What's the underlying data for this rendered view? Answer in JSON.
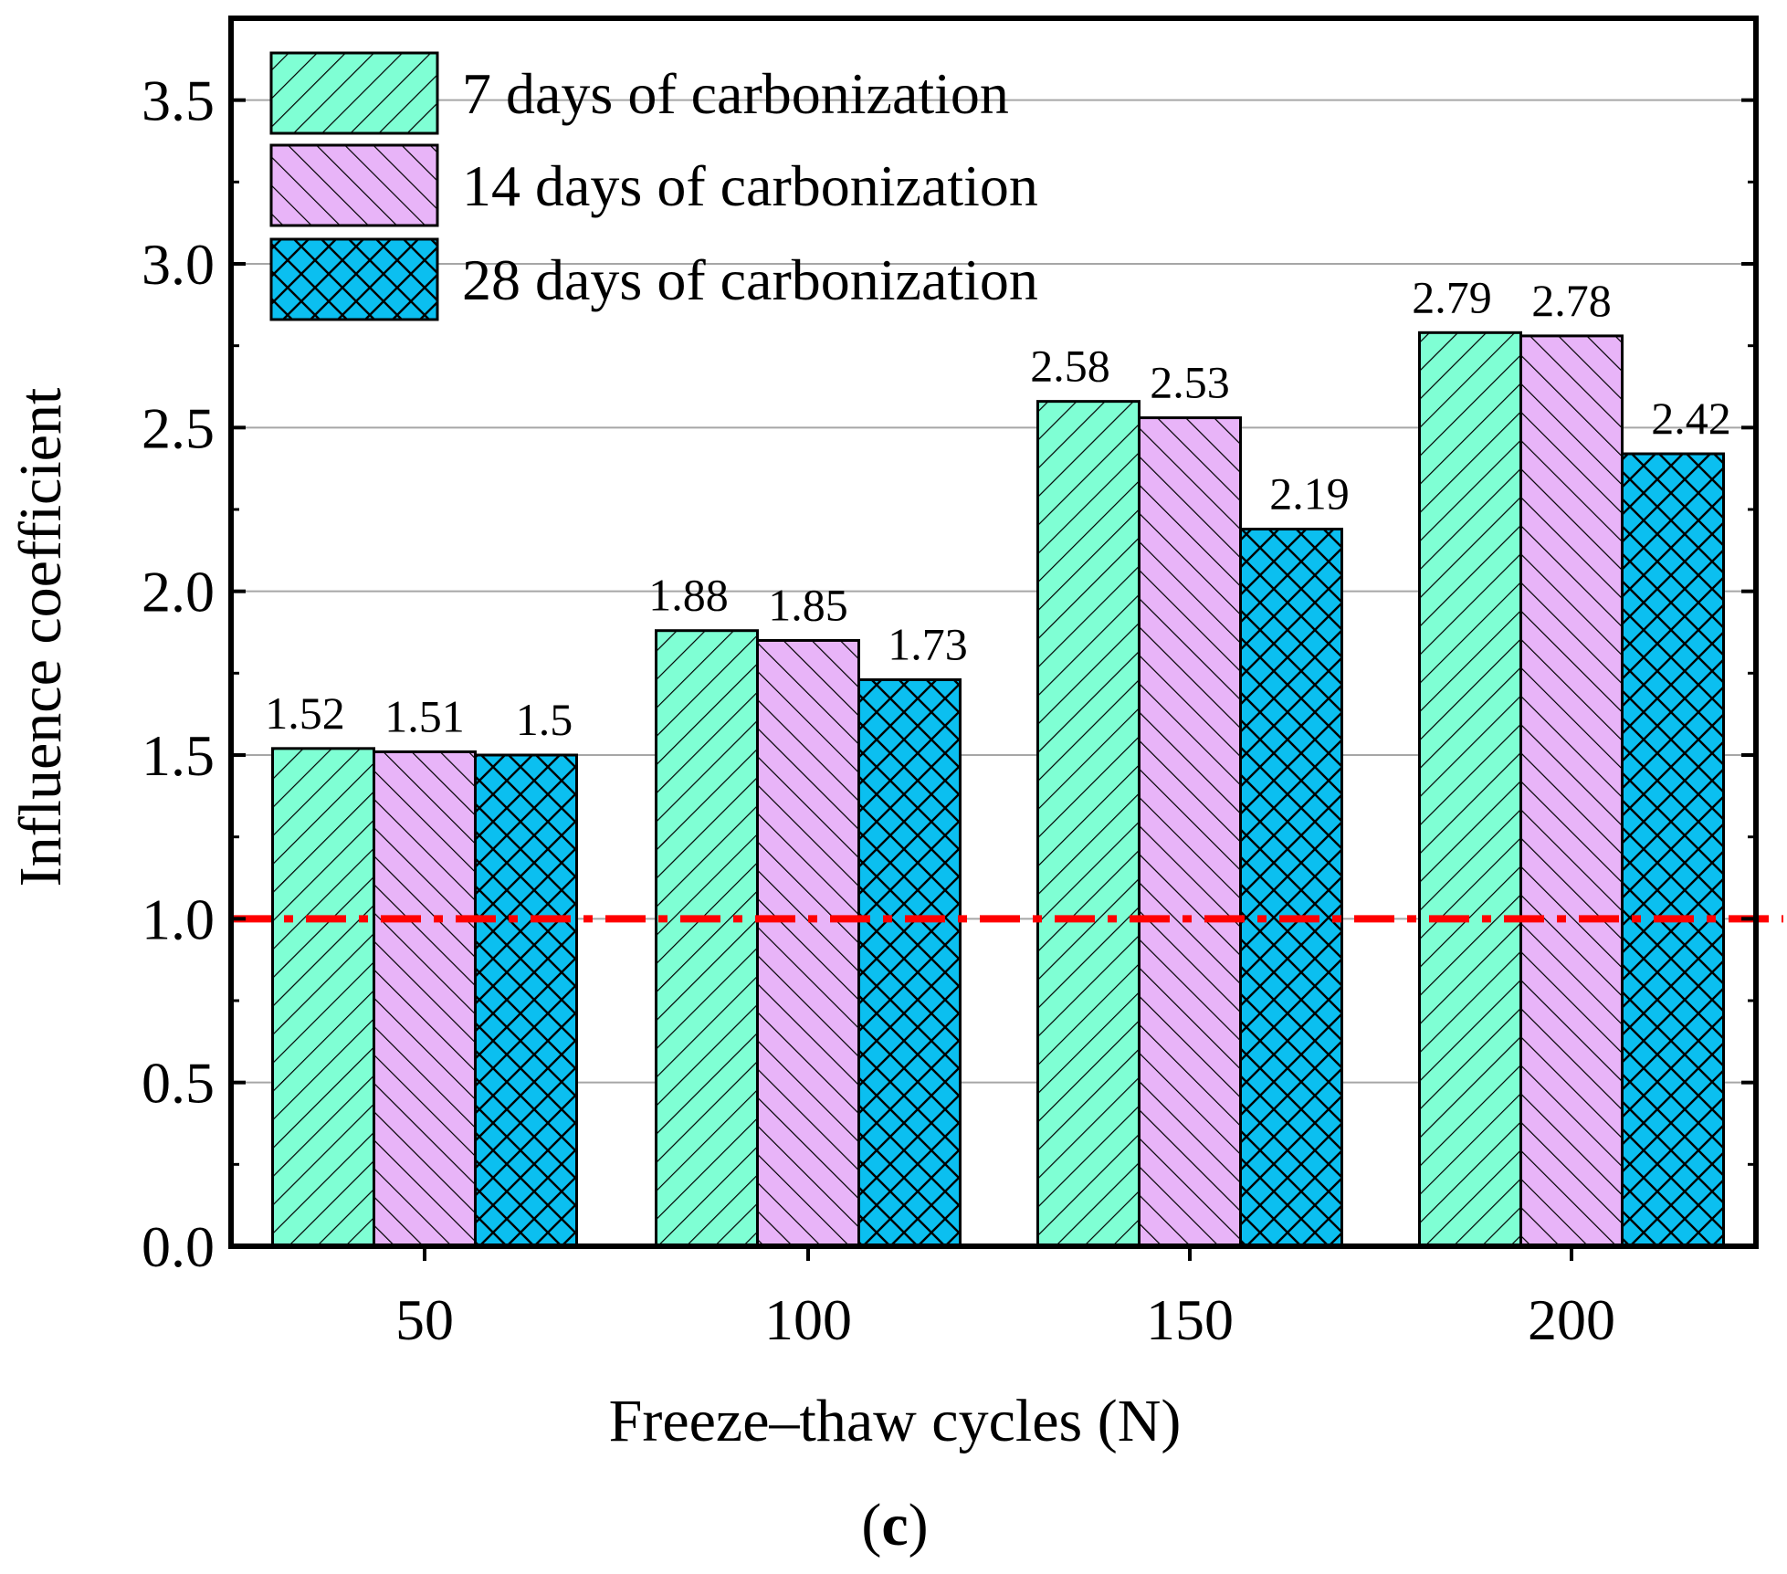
{
  "chart_data": {
    "type": "bar",
    "title": "",
    "xlabel": "Freeze–thaw cycles (N)",
    "ylabel": "Influence coefficient",
    "categories": [
      "50",
      "100",
      "150",
      "200"
    ],
    "series": [
      {
        "name": "7 days of carbonization",
        "values": [
          1.52,
          1.88,
          2.58,
          2.79
        ],
        "labels": [
          "1.52",
          "1.88",
          "2.58",
          "2.79"
        ],
        "color": "#7fffd4",
        "pattern": "diagonal-forward"
      },
      {
        "name": "14 days of carbonization",
        "values": [
          1.51,
          1.85,
          2.53,
          2.78
        ],
        "labels": [
          "1.51",
          "1.85",
          "2.53",
          "2.78"
        ],
        "color": "#e8b4f8",
        "pattern": "diagonal-backward"
      },
      {
        "name": "28 days of carbonization",
        "values": [
          1.5,
          1.73,
          2.19,
          2.42
        ],
        "labels": [
          "1.5",
          "1.73",
          "2.19",
          "2.42"
        ],
        "color": "#0bbff0",
        "pattern": "crosshatch"
      }
    ],
    "yticks": [
      "0.0",
      "0.5",
      "1.0",
      "1.5",
      "2.0",
      "2.5",
      "3.0",
      "3.5"
    ],
    "ylim": [
      0,
      3.75
    ],
    "grid": true,
    "reference_line": {
      "value": 1.0,
      "color": "#ff0000",
      "style": "dash-dot"
    },
    "legend_position": "top-left",
    "panel_label": {
      "open": "(",
      "letter": "c",
      "close": ")"
    }
  }
}
